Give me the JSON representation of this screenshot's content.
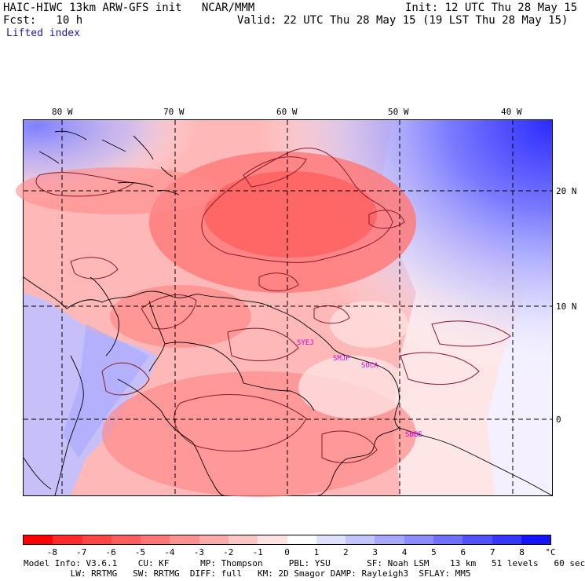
{
  "header": {
    "title_left": "HAIC-HIWC 13km ARW-GFS init   NCAR/MMM",
    "forecast": "Fcst:   10 h",
    "init": "Init: 12 UTC Thu 28 May 15",
    "valid": "Valid: 22 UTC Thu 28 May 15 (19 LST Thu 28 May 15)",
    "field": "Lifted index"
  },
  "map": {
    "lon_labels": [
      "80 W",
      "70 W",
      "60 W",
      "50 W",
      "40 W"
    ],
    "lat_labels": [
      "20 N",
      "10 N",
      "0"
    ],
    "stations": [
      "SYEJ",
      "SMJP",
      "SOCA",
      "SBBE"
    ]
  },
  "colorbar": {
    "labels": [
      "-8",
      "-7",
      "-6",
      "-5",
      "-4",
      "-3",
      "-2",
      "-1",
      "0",
      "1",
      "2",
      "3",
      "4",
      "5",
      "6",
      "7",
      "8"
    ],
    "unit": "°C",
    "colors": [
      "#ff0000",
      "#ff2a2a",
      "#ff4646",
      "#ff5e5e",
      "#ff7676",
      "#ff9090",
      "#ffaaaa",
      "#ffc6c6",
      "#ffe2e2",
      "#ffffff",
      "#e0e0ff",
      "#c4c4ff",
      "#a8a8ff",
      "#8c8cff",
      "#7070ff",
      "#5252ff",
      "#3636ff",
      "#1414ff"
    ]
  },
  "footer": {
    "line1": "Model Info: V3.6.1    CU: KF      MP: Thompson     PBL: YSU       SF: Noah LSM    13 km   51 levels   60 sec",
    "line2": "         LW: RRTMG   SW: RRTMG  DIFF: full   KM: 2D Smagor DAMP: Rayleigh3  SFLAY: MM5"
  }
}
